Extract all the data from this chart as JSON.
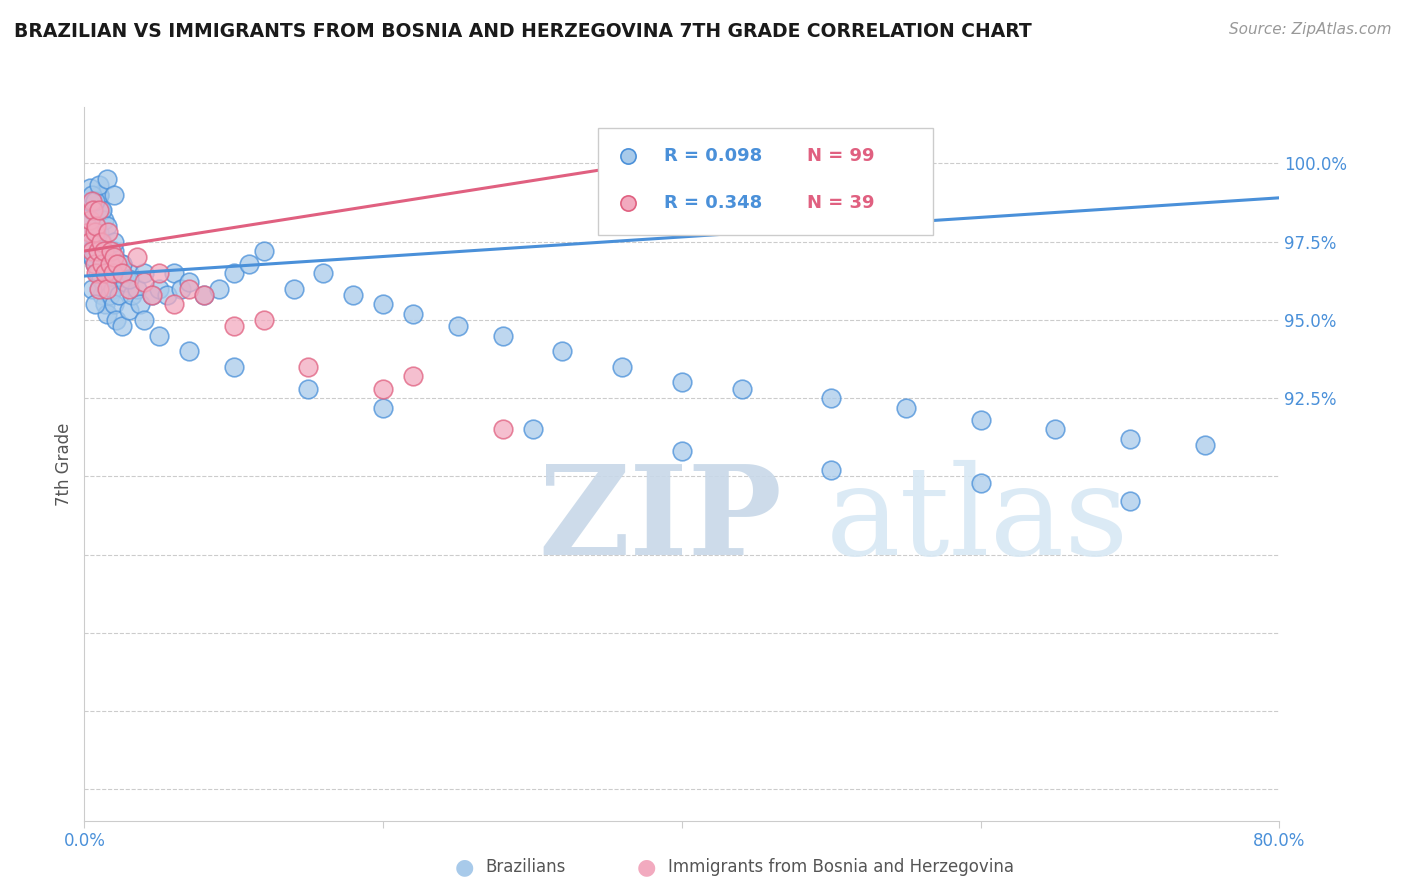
{
  "title": "BRAZILIAN VS IMMIGRANTS FROM BOSNIA AND HERZEGOVINA 7TH GRADE CORRELATION CHART",
  "source": "Source: ZipAtlas.com",
  "ylabel": "7th Grade",
  "xlim": [
    0.0,
    80.0
  ],
  "ylim": [
    79.0,
    101.8
  ],
  "xtick_positions": [
    0.0,
    20.0,
    40.0,
    60.0,
    80.0
  ],
  "xtick_labels": [
    "0.0%",
    "",
    "",
    "",
    "80.0%"
  ],
  "ytick_positions": [
    80.0,
    82.5,
    85.0,
    87.5,
    90.0,
    92.5,
    95.0,
    97.5,
    100.0
  ],
  "ytick_labels_right": [
    "",
    "",
    "",
    "",
    "",
    "92.5%",
    "95.0%",
    "97.5%",
    "100.0%"
  ],
  "blue_color": "#A8CAEA",
  "pink_color": "#F2AABF",
  "blue_line_color": "#4A90D9",
  "pink_line_color": "#E06080",
  "legend_blue_R": "R = 0.098",
  "legend_blue_N": "N = 99",
  "legend_pink_R": "R = 0.348",
  "legend_pink_N": "N = 39",
  "watermark_zip": "ZIP",
  "watermark_atlas": "atlas",
  "watermark_color": "#D8E8F4",
  "title_color": "#1a1a1a",
  "axis_tick_color": "#4A90D9",
  "grid_color": "#CCCCCC",
  "blue_trend": [
    0.0,
    80.0,
    96.4,
    98.9
  ],
  "pink_trend": [
    0.0,
    40.0,
    97.2,
    100.2
  ],
  "blue_scatter_x": [
    0.3,
    0.4,
    0.4,
    0.5,
    0.5,
    0.6,
    0.6,
    0.7,
    0.7,
    0.8,
    0.8,
    0.9,
    0.9,
    1.0,
    1.0,
    1.0,
    1.1,
    1.1,
    1.2,
    1.2,
    1.3,
    1.3,
    1.4,
    1.5,
    1.5,
    1.6,
    1.7,
    1.8,
    1.9,
    2.0,
    2.0,
    2.1,
    2.2,
    2.3,
    2.5,
    2.5,
    2.7,
    3.0,
    3.0,
    3.2,
    3.5,
    3.7,
    4.0,
    4.5,
    5.0,
    5.5,
    6.0,
    6.5,
    7.0,
    8.0,
    9.0,
    10.0,
    11.0,
    12.0,
    14.0,
    16.0,
    18.0,
    20.0,
    22.0,
    25.0,
    28.0,
    32.0,
    36.0,
    40.0,
    44.0,
    50.0,
    55.0,
    60.0,
    65.0,
    70.0,
    75.0,
    0.5,
    0.6,
    0.7,
    0.8,
    1.0,
    1.2,
    1.5,
    2.0,
    2.5,
    3.0,
    4.0,
    5.0,
    7.0,
    10.0,
    15.0,
    20.0,
    30.0,
    40.0,
    50.0,
    60.0,
    70.0,
    0.3,
    0.4,
    0.5,
    0.7,
    1.0,
    1.5,
    2.0
  ],
  "blue_scatter_y": [
    97.5,
    97.8,
    98.2,
    97.0,
    98.5,
    97.3,
    98.8,
    96.8,
    97.6,
    97.1,
    98.0,
    96.5,
    97.2,
    96.0,
    97.8,
    99.0,
    96.3,
    98.5,
    95.8,
    97.5,
    96.1,
    98.2,
    95.5,
    95.2,
    97.0,
    96.7,
    95.8,
    96.4,
    96.0,
    95.5,
    97.2,
    95.0,
    96.5,
    95.8,
    96.8,
    94.8,
    96.2,
    96.5,
    95.3,
    95.8,
    96.0,
    95.5,
    96.5,
    95.8,
    96.0,
    95.8,
    96.5,
    96.0,
    96.2,
    95.8,
    96.0,
    96.5,
    96.8,
    97.2,
    96.0,
    96.5,
    95.8,
    95.5,
    95.2,
    94.8,
    94.5,
    94.0,
    93.5,
    93.0,
    92.8,
    92.5,
    92.2,
    91.8,
    91.5,
    91.2,
    91.0,
    96.0,
    97.0,
    95.5,
    97.8,
    99.0,
    98.5,
    98.0,
    97.5,
    96.8,
    96.3,
    95.0,
    94.5,
    94.0,
    93.5,
    92.8,
    92.2,
    91.5,
    90.8,
    90.2,
    89.8,
    89.2,
    98.8,
    99.2,
    99.0,
    98.8,
    99.3,
    99.5,
    99.0
  ],
  "pink_scatter_x": [
    0.3,
    0.4,
    0.4,
    0.5,
    0.5,
    0.6,
    0.7,
    0.7,
    0.8,
    0.8,
    0.9,
    1.0,
    1.0,
    1.1,
    1.2,
    1.3,
    1.4,
    1.5,
    1.6,
    1.7,
    1.8,
    1.9,
    2.0,
    2.2,
    2.5,
    3.0,
    3.5,
    4.0,
    4.5,
    5.0,
    6.0,
    7.0,
    8.0,
    10.0,
    15.0,
    20.0,
    28.0,
    22.0,
    12.0
  ],
  "pink_scatter_y": [
    97.8,
    98.2,
    97.5,
    98.8,
    97.2,
    98.5,
    96.8,
    97.8,
    96.5,
    98.0,
    97.2,
    96.0,
    98.5,
    97.5,
    96.8,
    97.2,
    96.5,
    96.0,
    97.8,
    96.8,
    97.2,
    96.5,
    97.0,
    96.8,
    96.5,
    96.0,
    97.0,
    96.2,
    95.8,
    96.5,
    95.5,
    96.0,
    95.8,
    94.8,
    93.5,
    92.8,
    91.5,
    93.2,
    95.0
  ]
}
